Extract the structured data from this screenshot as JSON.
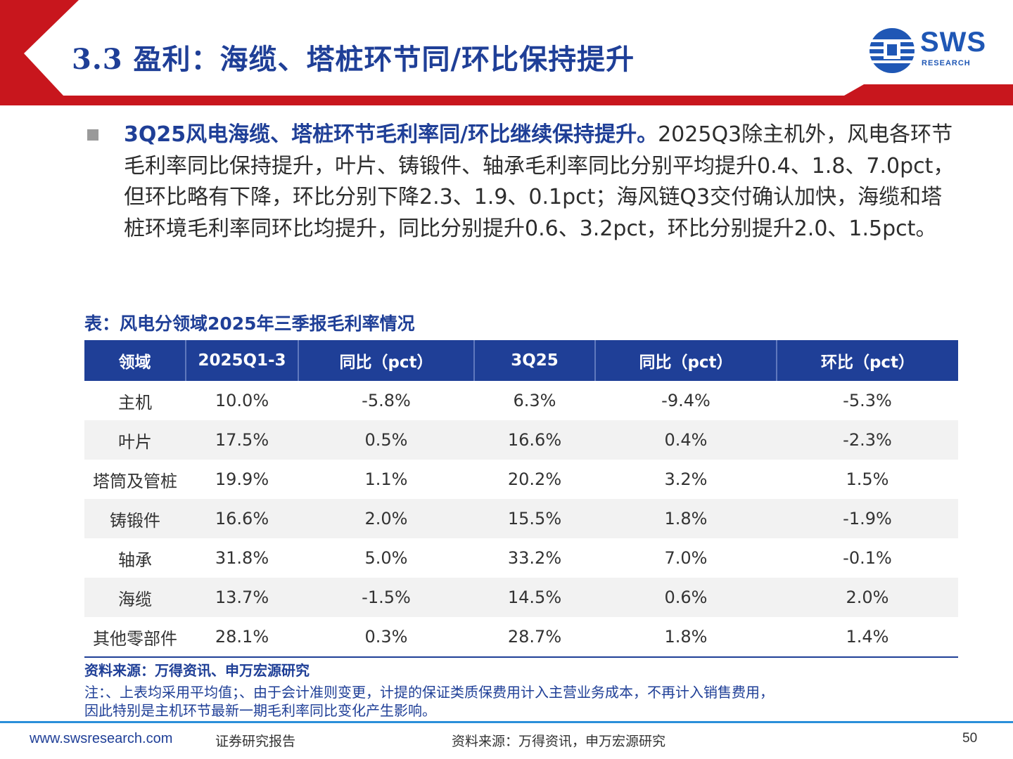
{
  "header": {
    "title": "3.3 盈利：海缆、塔桩环节同/环比保持提升",
    "logo_text": "SWS",
    "logo_subtext": "RESEARCH",
    "colors": {
      "band": "#c8161d",
      "title": "#1f3f97",
      "logo": "#1f57b5"
    }
  },
  "summary": {
    "bold_lead": "3Q25风电海缆、塔桩环节毛利率同/环比继续保持提升。",
    "body": "2025Q3除主机外，风电各环节毛利率同比保持提升，叶片、铸锻件、轴承毛利率同比分别平均提升0.4、1.8、7.0pct，但环比略有下降，环比分别下降2.3、1.9、0.1pct；海风链Q3交付确认加快，海缆和塔桩环境毛利率同环比均提升，同比分别提升0.6、3.2pct，环比分别提升2.0、1.5pct。"
  },
  "table": {
    "caption": "表：风电分领域2025年三季报毛利率情况",
    "headers": [
      "领域",
      "2025Q1-3",
      "同比（pct）",
      "3Q25",
      "同比（pct）",
      "环比（pct）"
    ],
    "rows": [
      [
        "主机",
        "10.0%",
        "-5.8%",
        "6.3%",
        "-9.4%",
        "-5.3%"
      ],
      [
        "叶片",
        "17.5%",
        "0.5%",
        "16.6%",
        "0.4%",
        "-2.3%"
      ],
      [
        "塔筒及管桩",
        "19.9%",
        "1.1%",
        "20.2%",
        "3.2%",
        "1.5%"
      ],
      [
        "铸锻件",
        "16.6%",
        "2.0%",
        "15.5%",
        "1.8%",
        "-1.9%"
      ],
      [
        "轴承",
        "31.8%",
        "5.0%",
        "33.2%",
        "7.0%",
        "-0.1%"
      ],
      [
        "海缆",
        "13.7%",
        "-1.5%",
        "14.5%",
        "0.6%",
        "2.0%"
      ],
      [
        "其他零部件",
        "28.1%",
        "0.3%",
        "28.7%",
        "1.8%",
        "1.4%"
      ]
    ],
    "source": "资料来源：万得资讯、申万宏源研究",
    "note_line1": "注：、上表均采用平均值；、由于会计准则变更，计提的保证类质保费用计入主营业务成本，不再计入销售费用，",
    "note_line2": "因此特别是主机环节最新一期毛利率同比变化产生影响。",
    "colors": {
      "header_bg": "#1f3f97",
      "stripe": "#f2f2f2"
    }
  },
  "footer": {
    "url": "www.swsresearch.com",
    "report_type": "证券研究报告",
    "source": "资料来源：万得资讯，申万宏源研究",
    "page": "50"
  }
}
